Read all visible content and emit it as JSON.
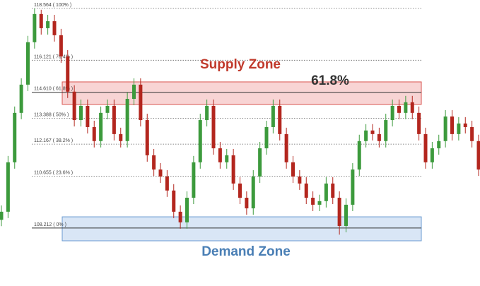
{
  "chart_data": {
    "type": "candlestick",
    "ylim": [
      105.48,
      118.96
    ],
    "up_color": "#3c9a3c",
    "down_color": "#b3261e",
    "ohlc": [
      [
        108.6,
        109.28,
        108.3,
        108.98
      ],
      [
        108.98,
        111.61,
        108.68,
        111.31
      ],
      [
        111.31,
        113.94,
        111.01,
        113.64
      ],
      [
        113.64,
        115.27,
        113.34,
        114.97
      ],
      [
        114.97,
        117.27,
        114.67,
        116.97
      ],
      [
        116.97,
        118.56,
        116.67,
        118.3
      ],
      [
        118.3,
        118.5,
        117.33,
        117.63
      ],
      [
        117.63,
        118.26,
        117.33,
        117.96
      ],
      [
        117.96,
        118.26,
        117.0,
        117.3
      ],
      [
        117.3,
        117.6,
        116.0,
        116.3
      ],
      [
        116.3,
        116.6,
        114.34,
        114.64
      ],
      [
        114.64,
        114.94,
        113.0,
        113.3
      ],
      [
        113.3,
        114.27,
        113.0,
        113.97
      ],
      [
        113.97,
        114.27,
        112.67,
        112.97
      ],
      [
        112.97,
        113.27,
        112.01,
        112.31
      ],
      [
        112.31,
        113.94,
        112.01,
        113.64
      ],
      [
        113.64,
        114.27,
        113.34,
        113.97
      ],
      [
        113.97,
        114.27,
        112.34,
        112.64
      ],
      [
        112.64,
        112.94,
        112.01,
        112.31
      ],
      [
        112.31,
        114.6,
        112.01,
        114.3
      ],
      [
        114.3,
        115.27,
        114.0,
        114.97
      ],
      [
        114.97,
        115.27,
        113.0,
        113.3
      ],
      [
        113.3,
        113.6,
        111.34,
        111.64
      ],
      [
        111.64,
        111.94,
        110.67,
        110.97
      ],
      [
        110.97,
        111.27,
        110.34,
        110.64
      ],
      [
        110.64,
        110.94,
        109.68,
        109.98
      ],
      [
        109.98,
        110.28,
        108.68,
        108.98
      ],
      [
        108.98,
        109.28,
        108.18,
        108.48
      ],
      [
        108.48,
        109.94,
        108.18,
        109.64
      ],
      [
        109.64,
        111.61,
        109.34,
        111.31
      ],
      [
        111.31,
        113.6,
        111.01,
        113.3
      ],
      [
        113.3,
        114.27,
        113.0,
        113.97
      ],
      [
        113.97,
        114.27,
        111.67,
        111.97
      ],
      [
        111.97,
        112.27,
        111.01,
        111.31
      ],
      [
        111.31,
        111.94,
        111.01,
        111.64
      ],
      [
        111.64,
        111.94,
        110.01,
        110.31
      ],
      [
        110.31,
        110.61,
        109.34,
        109.64
      ],
      [
        109.64,
        109.94,
        108.84,
        109.14
      ],
      [
        109.14,
        110.94,
        108.84,
        110.64
      ],
      [
        110.64,
        112.27,
        110.34,
        111.97
      ],
      [
        111.97,
        113.27,
        111.67,
        112.97
      ],
      [
        112.97,
        114.27,
        112.67,
        113.97
      ],
      [
        113.97,
        114.27,
        112.34,
        112.64
      ],
      [
        112.64,
        112.94,
        111.01,
        111.31
      ],
      [
        111.31,
        111.61,
        110.34,
        110.64
      ],
      [
        110.64,
        110.94,
        110.01,
        110.31
      ],
      [
        110.31,
        110.61,
        109.34,
        109.64
      ],
      [
        109.64,
        109.94,
        109.01,
        109.31
      ],
      [
        109.31,
        109.78,
        109.01,
        109.48
      ],
      [
        109.48,
        110.61,
        109.18,
        110.31
      ],
      [
        110.31,
        110.61,
        109.34,
        109.64
      ],
      [
        109.64,
        109.94,
        107.9,
        108.31
      ],
      [
        108.31,
        109.61,
        108.01,
        109.31
      ],
      [
        109.31,
        111.27,
        109.01,
        110.97
      ],
      [
        110.97,
        112.61,
        110.67,
        112.31
      ],
      [
        112.31,
        113.11,
        112.01,
        112.81
      ],
      [
        112.81,
        113.11,
        112.34,
        112.64
      ],
      [
        112.64,
        112.94,
        112.01,
        112.31
      ],
      [
        112.31,
        113.6,
        112.01,
        113.3
      ],
      [
        113.3,
        114.27,
        113.0,
        113.97
      ],
      [
        113.97,
        114.27,
        113.34,
        113.64
      ],
      [
        113.64,
        114.44,
        113.34,
        114.14
      ],
      [
        114.14,
        114.44,
        113.34,
        113.64
      ],
      [
        113.64,
        113.94,
        112.34,
        112.64
      ],
      [
        112.64,
        112.94,
        111.01,
        111.31
      ],
      [
        111.31,
        112.27,
        111.01,
        111.97
      ],
      [
        111.97,
        112.61,
        111.67,
        112.31
      ],
      [
        112.31,
        113.77,
        112.01,
        113.47
      ],
      [
        113.47,
        113.77,
        112.34,
        112.64
      ],
      [
        112.64,
        113.44,
        112.34,
        113.14
      ],
      [
        113.14,
        113.44,
        112.67,
        112.97
      ],
      [
        112.97,
        113.27,
        112.01,
        112.31
      ],
      [
        112.31,
        112.61,
        110.67,
        110.97
      ]
    ],
    "levels": [
      {
        "price": 118.564,
        "label": "118.564 ( 100% )"
      },
      {
        "price": 116.121,
        "label": "116.121 ( 76.4% )"
      },
      {
        "price": 114.61,
        "label": "114.610 ( 61.8% )"
      },
      {
        "price": 113.388,
        "label": "113.388 ( 50% )"
      },
      {
        "price": 112.167,
        "label": "112.167 ( 38.2% )"
      },
      {
        "price": 110.655,
        "label": "110.655 ( 23.6% )"
      },
      {
        "price": 108.212,
        "label": "108.212 ( 0% )"
      }
    ],
    "supply_zone": {
      "label": "Supply Zone",
      "from": 114.04,
      "to": 115.1,
      "color": "#c0392b"
    },
    "demand_zone": {
      "label": "Demand Zone",
      "from": 107.61,
      "to": 108.74,
      "color": "#4a7fb5"
    },
    "annotation": "61.8%"
  }
}
